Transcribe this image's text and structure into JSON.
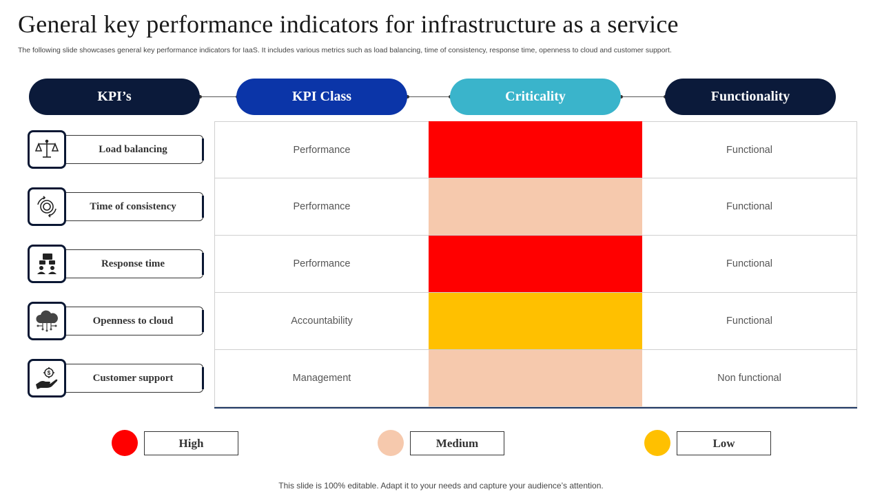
{
  "title": "General key performance indicators for infrastructure as a service",
  "subtitle": "The following slide showcases general key performance indicators for IaaS. It includes various metrics such as load balancing, time of consistency, response time, openness to cloud and customer support.",
  "headers": [
    "KPI’s",
    "KPI Class",
    "Criticality",
    "Functionality"
  ],
  "header_colors": [
    "#0b1a3a",
    "#0b35a8",
    "#3ab4cb",
    "#0b1a3a"
  ],
  "rows": [
    {
      "kpi": "Load balancing",
      "icon": "scale-icon",
      "kpi_class": "Performance",
      "criticality": "High",
      "functionality": "Functional"
    },
    {
      "kpi": "Time of consistency",
      "icon": "target-cycle-icon",
      "kpi_class": "Performance",
      "criticality": "Medium",
      "functionality": "Functional"
    },
    {
      "kpi": "Response time",
      "icon": "support-team-icon",
      "kpi_class": "Performance",
      "criticality": "High",
      "functionality": "Functional"
    },
    {
      "kpi": "Openness to cloud",
      "icon": "cloud-network-icon",
      "kpi_class": "Accountability",
      "criticality": "Low",
      "functionality": "Functional"
    },
    {
      "kpi": "Customer support",
      "icon": "hand-dollar-icon",
      "kpi_class": "Management",
      "criticality": "Medium",
      "functionality": "Non functional"
    }
  ],
  "legend": [
    {
      "label": "High",
      "color": "#ff0000"
    },
    {
      "label": "Medium",
      "color": "#f6c9ad"
    },
    {
      "label": "Low",
      "color": "#ffc000"
    }
  ],
  "footer": "This slide is 100% editable. Adapt it to your needs and capture your audience’s attention."
}
